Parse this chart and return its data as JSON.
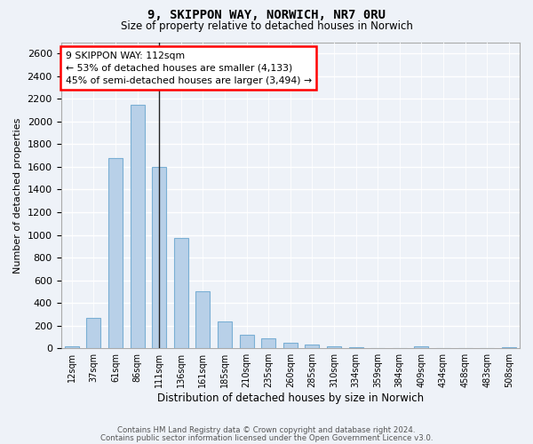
{
  "title_line1": "9, SKIPPON WAY, NORWICH, NR7 0RU",
  "title_line2": "Size of property relative to detached houses in Norwich",
  "xlabel": "Distribution of detached houses by size in Norwich",
  "ylabel": "Number of detached properties",
  "categories": [
    "12sqm",
    "37sqm",
    "61sqm",
    "86sqm",
    "111sqm",
    "136sqm",
    "161sqm",
    "185sqm",
    "210sqm",
    "235sqm",
    "260sqm",
    "285sqm",
    "310sqm",
    "334sqm",
    "359sqm",
    "384sqm",
    "409sqm",
    "434sqm",
    "458sqm",
    "483sqm",
    "508sqm"
  ],
  "values": [
    18,
    270,
    1680,
    2150,
    1600,
    975,
    500,
    240,
    120,
    90,
    50,
    32,
    20,
    10,
    5,
    3,
    15,
    2,
    1,
    1,
    8
  ],
  "bar_color": "#b8d0e8",
  "bar_edge_color": "#7aafd4",
  "marker_bar_index": 4,
  "annotation_text": "9 SKIPPON WAY: 112sqm\n← 53% of detached houses are smaller (4,133)\n45% of semi-detached houses are larger (3,494) →",
  "annotation_box_color": "white",
  "annotation_box_edge_color": "red",
  "ylim": [
    0,
    2700
  ],
  "yticks": [
    0,
    200,
    400,
    600,
    800,
    1000,
    1200,
    1400,
    1600,
    1800,
    2000,
    2200,
    2400,
    2600
  ],
  "background_color": "#eef2f8",
  "plot_bg_color": "#eef2f8",
  "footer_line1": "Contains HM Land Registry data © Crown copyright and database right 2024.",
  "footer_line2": "Contains public sector information licensed under the Open Government Licence v3.0."
}
